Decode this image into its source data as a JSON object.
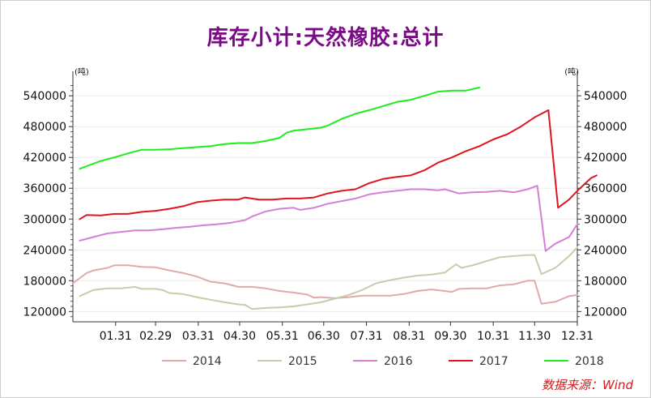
{
  "chart_data": {
    "type": "line",
    "title": "库存小计:天然橡胶:总计",
    "unit_left": "(吨)",
    "unit_right": "(吨)",
    "source": "数据来源：Wind",
    "ylim": [
      100000,
      575000
    ],
    "yticks": [
      120000,
      180000,
      240000,
      300000,
      360000,
      420000,
      480000,
      540000
    ],
    "xlim": [
      0,
      366
    ],
    "xticks": [
      {
        "day": 31,
        "label": "01.31"
      },
      {
        "day": 60,
        "label": "02.29"
      },
      {
        "day": 91,
        "label": "03.31"
      },
      {
        "day": 121,
        "label": "04.30"
      },
      {
        "day": 152,
        "label": "05.31"
      },
      {
        "day": 182,
        "label": "06.30"
      },
      {
        "day": 213,
        "label": "07.31"
      },
      {
        "day": 244,
        "label": "08.31"
      },
      {
        "day": 274,
        "label": "09.30"
      },
      {
        "day": 305,
        "label": "10.31"
      },
      {
        "day": 335,
        "label": "11.30"
      },
      {
        "day": 366,
        "label": "12.31"
      }
    ],
    "series": [
      {
        "name": "2014",
        "color": "#e0a9ab",
        "points": [
          [
            0,
            175000
          ],
          [
            10,
            195000
          ],
          [
            15,
            200000
          ],
          [
            25,
            205000
          ],
          [
            30,
            210000
          ],
          [
            40,
            210000
          ],
          [
            50,
            207000
          ],
          [
            60,
            206000
          ],
          [
            70,
            200000
          ],
          [
            80,
            195000
          ],
          [
            90,
            188000
          ],
          [
            100,
            178000
          ],
          [
            110,
            175000
          ],
          [
            120,
            168000
          ],
          [
            130,
            168000
          ],
          [
            140,
            165000
          ],
          [
            150,
            160000
          ],
          [
            160,
            157000
          ],
          [
            170,
            153000
          ],
          [
            175,
            147000
          ],
          [
            180,
            148000
          ],
          [
            190,
            146000
          ],
          [
            200,
            148000
          ],
          [
            210,
            151000
          ],
          [
            220,
            151000
          ],
          [
            230,
            151000
          ],
          [
            240,
            154000
          ],
          [
            250,
            160000
          ],
          [
            260,
            163000
          ],
          [
            270,
            160000
          ],
          [
            275,
            158000
          ],
          [
            280,
            164000
          ],
          [
            290,
            165000
          ],
          [
            300,
            165000
          ],
          [
            310,
            171000
          ],
          [
            320,
            173000
          ],
          [
            330,
            180000
          ],
          [
            335,
            180000
          ],
          [
            340,
            135000
          ],
          [
            350,
            139000
          ],
          [
            360,
            150000
          ],
          [
            366,
            152000
          ]
        ]
      },
      {
        "name": "2015",
        "color": "#c8ccaa",
        "points": [
          [
            5,
            150000
          ],
          [
            15,
            162000
          ],
          [
            25,
            165000
          ],
          [
            35,
            165000
          ],
          [
            45,
            168000
          ],
          [
            50,
            164000
          ],
          [
            60,
            164000
          ],
          [
            65,
            162000
          ],
          [
            70,
            156000
          ],
          [
            80,
            154000
          ],
          [
            90,
            148000
          ],
          [
            100,
            143000
          ],
          [
            110,
            138000
          ],
          [
            120,
            134000
          ],
          [
            125,
            133000
          ],
          [
            130,
            125000
          ],
          [
            140,
            127000
          ],
          [
            150,
            128000
          ],
          [
            160,
            130000
          ],
          [
            170,
            134000
          ],
          [
            180,
            138000
          ],
          [
            190,
            145000
          ],
          [
            200,
            152000
          ],
          [
            210,
            162000
          ],
          [
            220,
            175000
          ],
          [
            230,
            181000
          ],
          [
            240,
            186000
          ],
          [
            250,
            190000
          ],
          [
            260,
            192000
          ],
          [
            270,
            196000
          ],
          [
            278,
            212000
          ],
          [
            282,
            205000
          ],
          [
            290,
            210000
          ],
          [
            300,
            218000
          ],
          [
            310,
            226000
          ],
          [
            320,
            228000
          ],
          [
            330,
            230000
          ],
          [
            335,
            230000
          ],
          [
            340,
            193000
          ],
          [
            350,
            205000
          ],
          [
            360,
            228000
          ],
          [
            366,
            245000
          ]
        ]
      },
      {
        "name": "2016",
        "color": "#d57fd6",
        "points": [
          [
            5,
            258000
          ],
          [
            15,
            265000
          ],
          [
            25,
            272000
          ],
          [
            35,
            275000
          ],
          [
            45,
            278000
          ],
          [
            55,
            278000
          ],
          [
            65,
            280000
          ],
          [
            75,
            283000
          ],
          [
            85,
            285000
          ],
          [
            95,
            288000
          ],
          [
            105,
            290000
          ],
          [
            115,
            293000
          ],
          [
            125,
            298000
          ],
          [
            130,
            305000
          ],
          [
            140,
            315000
          ],
          [
            150,
            320000
          ],
          [
            160,
            322000
          ],
          [
            165,
            318000
          ],
          [
            175,
            322000
          ],
          [
            185,
            330000
          ],
          [
            195,
            335000
          ],
          [
            205,
            340000
          ],
          [
            215,
            348000
          ],
          [
            225,
            352000
          ],
          [
            235,
            355000
          ],
          [
            245,
            358000
          ],
          [
            255,
            358000
          ],
          [
            265,
            356000
          ],
          [
            270,
            358000
          ],
          [
            280,
            350000
          ],
          [
            290,
            352000
          ],
          [
            300,
            353000
          ],
          [
            310,
            355000
          ],
          [
            320,
            352000
          ],
          [
            330,
            358000
          ],
          [
            337,
            365000
          ],
          [
            343,
            238000
          ],
          [
            350,
            252000
          ],
          [
            360,
            265000
          ],
          [
            366,
            290000
          ]
        ]
      },
      {
        "name": "2017",
        "color": "#e0141e",
        "points": [
          [
            5,
            300000
          ],
          [
            10,
            308000
          ],
          [
            20,
            307000
          ],
          [
            30,
            310000
          ],
          [
            40,
            310000
          ],
          [
            50,
            314000
          ],
          [
            60,
            316000
          ],
          [
            70,
            320000
          ],
          [
            80,
            325000
          ],
          [
            90,
            333000
          ],
          [
            100,
            336000
          ],
          [
            110,
            338000
          ],
          [
            120,
            338000
          ],
          [
            125,
            342000
          ],
          [
            135,
            338000
          ],
          [
            145,
            338000
          ],
          [
            155,
            340000
          ],
          [
            165,
            340000
          ],
          [
            175,
            342000
          ],
          [
            185,
            350000
          ],
          [
            195,
            355000
          ],
          [
            205,
            358000
          ],
          [
            215,
            370000
          ],
          [
            225,
            378000
          ],
          [
            235,
            382000
          ],
          [
            245,
            385000
          ],
          [
            255,
            395000
          ],
          [
            265,
            410000
          ],
          [
            275,
            420000
          ],
          [
            285,
            432000
          ],
          [
            295,
            442000
          ],
          [
            305,
            455000
          ],
          [
            315,
            465000
          ],
          [
            325,
            480000
          ],
          [
            335,
            498000
          ],
          [
            345,
            512000
          ],
          [
            352,
            322000
          ],
          [
            360,
            338000
          ],
          [
            366,
            355000
          ],
          [
            376,
            380000
          ],
          [
            380,
            385000
          ]
        ]
      },
      {
        "name": "2018",
        "color": "#1ded1d",
        "points": [
          [
            5,
            398000
          ],
          [
            10,
            403000
          ],
          [
            20,
            413000
          ],
          [
            30,
            420000
          ],
          [
            40,
            428000
          ],
          [
            50,
            435000
          ],
          [
            60,
            435000
          ],
          [
            70,
            436000
          ],
          [
            80,
            438000
          ],
          [
            90,
            440000
          ],
          [
            100,
            442000
          ],
          [
            110,
            446000
          ],
          [
            120,
            448000
          ],
          [
            130,
            448000
          ],
          [
            140,
            452000
          ],
          [
            150,
            458000
          ],
          [
            155,
            468000
          ],
          [
            160,
            472000
          ],
          [
            170,
            475000
          ],
          [
            180,
            478000
          ],
          [
            185,
            482000
          ],
          [
            195,
            495000
          ],
          [
            205,
            505000
          ],
          [
            215,
            512000
          ],
          [
            225,
            520000
          ],
          [
            235,
            528000
          ],
          [
            245,
            532000
          ],
          [
            255,
            540000
          ],
          [
            265,
            548000
          ],
          [
            275,
            550000
          ],
          [
            285,
            550000
          ],
          [
            295,
            556000
          ]
        ]
      }
    ]
  }
}
